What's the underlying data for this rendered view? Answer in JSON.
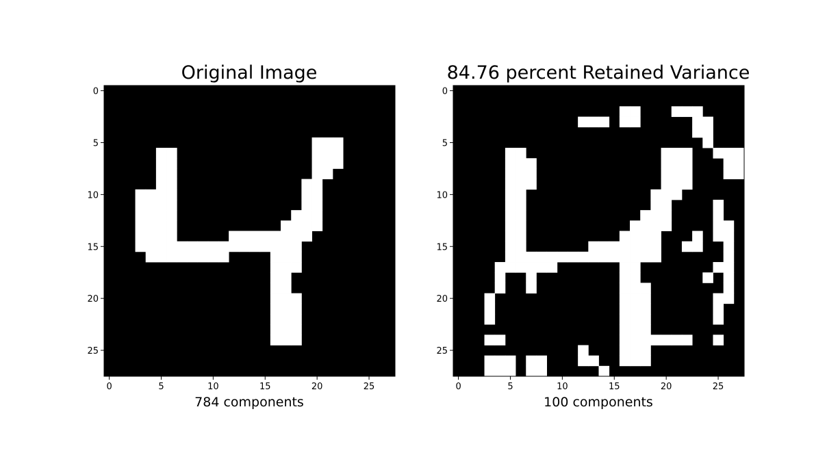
{
  "chart_data": [
    {
      "type": "heatmap",
      "title": "Original Image",
      "xlabel": "784 components",
      "ylabel": "",
      "x_ticks": [
        0,
        5,
        10,
        15,
        20,
        25
      ],
      "y_ticks": [
        0,
        5,
        10,
        15,
        20,
        25
      ],
      "xlim": [
        -0.5,
        27.5
      ],
      "ylim": [
        27.5,
        -0.5
      ],
      "grid": false,
      "colormap": "gray",
      "colors": {
        "on": "#ffffff",
        "off": "#000000"
      },
      "rows": [
        "0000000000000000000000000000",
        "0000000000000000000000000000",
        "0000000000000000000000000000",
        "0000000000000000000000000000",
        "0000000000000000000000000000",
        "0000000000000000000011100000",
        "0000011000000000000011100000",
        "0000011000000000000011100000",
        "0000011000000000000011000000",
        "0000011000000000000110000000",
        "0001111000000000000110000000",
        "0001111000000000000110000000",
        "0001111000000000001110000000",
        "0001111000000000011110000000",
        "0001111000001111111100000000",
        "0001111111111111111000000000",
        "0000111111110000111000000000",
        "0000000000000000111000000000",
        "0000000000000000110000000000",
        "0000000000000000110000000000",
        "0000000000000000111000000000",
        "0000000000000000111000000000",
        "0000000000000000111000000000",
        "0000000000000000111000000000",
        "0000000000000000111000000000",
        "0000000000000000000000000000",
        "0000000000000000000000000000",
        "0000000000000000000000000000"
      ]
    },
    {
      "type": "heatmap",
      "title": "84.76 percent Retained Variance",
      "xlabel": "100 components",
      "ylabel": "",
      "x_ticks": [
        0,
        5,
        10,
        15,
        20,
        25
      ],
      "y_ticks": [
        0,
        5,
        10,
        15,
        20,
        25
      ],
      "xlim": [
        -0.5,
        27.5
      ],
      "ylim": [
        27.5,
        -0.5
      ],
      "grid": false,
      "colormap": "gray",
      "colors": {
        "on": "#ffffff",
        "off": "#000000"
      },
      "rows": [
        "0000000000000000000000000000",
        "0000000000000000000000000000",
        "0000000000000000110001110000",
        "0000000000001110110000011000",
        "0000000000000000000000011000",
        "0000000000000000000000001000",
        "0000011000000000000011100111",
        "0000011100000000000011100011",
        "0000011100000000000011100011",
        "0000011100000000000011100000",
        "0000011000000000000111000000",
        "0000011000000000000110000100",
        "0000011000000000001110000100",
        "0000011000000000011110000110",
        "0000011000000000111100010110",
        "0000011000000111111100110010",
        "0000011111111111111100000010",
        "0000111111000000110000000110",
        "0000100100000000110000001010",
        "0000100100000000111000000010",
        "0001000000000000111000000110",
        "0001000000000000111000000100",
        "0001000000000000111000000100",
        "0000000000000000111000000000",
        "0001100000000000111111100100",
        "0000000000001000111000000000",
        "0001110110001100111000000000",
        "0001110110000010000000000000"
      ]
    }
  ]
}
